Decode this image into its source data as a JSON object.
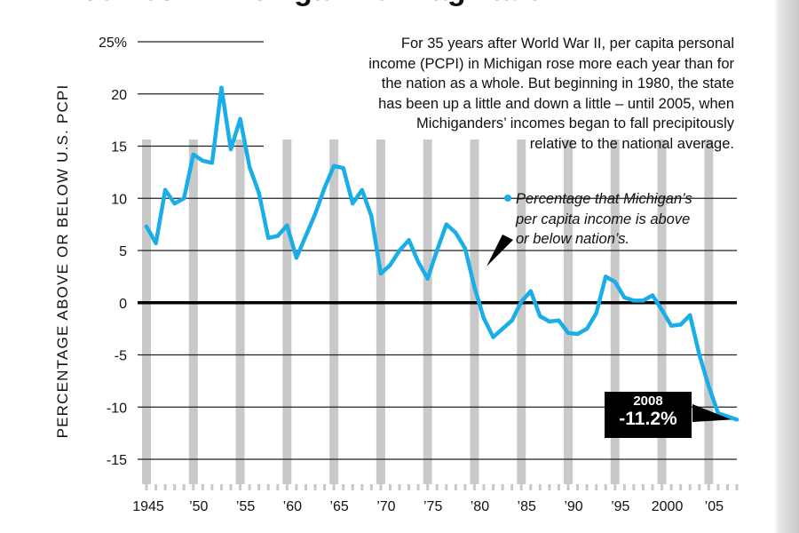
{
  "header": {
    "title": "Incomes in Michigan now lag nation"
  },
  "annotation": {
    "intro_lines": [
      "For 35 years after World War II, per capita personal",
      "income (PCPI) in Michigan rose more each year than for",
      "the nation as a whole. But beginning in 1980, the state",
      "has been up a little and down a little – until 2005, when",
      "Michiganders’ incomes began to fall precipitously",
      "relative to the national average."
    ]
  },
  "legend": {
    "lines": [
      "Percentage that Michigan’s",
      "per capita income is above",
      "or below nation’s."
    ]
  },
  "callout": {
    "year": "2008",
    "value": "-11.2%"
  },
  "colors": {
    "line": "#1aaee8",
    "bars": "#c9c9c9",
    "zero_line": "#000000",
    "grid": "#222222"
  },
  "chart_data": {
    "type": "line",
    "title": "Incomes in Michigan now lag nation",
    "ylabel": "PERCENTAGE ABOVE OR BELOW U.S. PCPI",
    "xlabel": "",
    "ylim": [
      -15,
      25
    ],
    "xlim": [
      1945,
      2008
    ],
    "y_ticks": [
      25,
      20,
      15,
      10,
      5,
      0,
      -5,
      -10,
      -15
    ],
    "y_tick_labels": [
      "25%",
      "20",
      "15",
      "10",
      "5",
      "0",
      "-5",
      "-10",
      "-15"
    ],
    "x_tick_years": [
      1945,
      1950,
      1955,
      1960,
      1965,
      1970,
      1975,
      1980,
      1985,
      1990,
      1995,
      2000,
      2005
    ],
    "x_tick_labels": [
      "1945",
      "’50",
      "’55",
      "’60",
      "’65",
      "’70",
      "’75",
      "’80",
      "’85",
      "’90",
      "’95",
      "2000",
      "’05"
    ],
    "series": [
      {
        "name": "Percentage that Michigan’s per capita income is above or below nation’s",
        "x": [
          1945,
          1946,
          1947,
          1948,
          1949,
          1950,
          1951,
          1952,
          1953,
          1954,
          1955,
          1956,
          1957,
          1958,
          1959,
          1960,
          1961,
          1962,
          1963,
          1964,
          1965,
          1966,
          1967,
          1968,
          1969,
          1970,
          1971,
          1972,
          1973,
          1974,
          1975,
          1976,
          1977,
          1978,
          1979,
          1980,
          1981,
          1982,
          1983,
          1984,
          1985,
          1986,
          1987,
          1988,
          1989,
          1990,
          1991,
          1992,
          1993,
          1994,
          1995,
          1996,
          1997,
          1998,
          1999,
          2000,
          2001,
          2002,
          2003,
          2004,
          2005,
          2006,
          2007,
          2008
        ],
        "values": [
          7.3,
          5.7,
          10.8,
          9.5,
          10.0,
          14.2,
          13.6,
          13.4,
          20.6,
          14.7,
          17.6,
          13.0,
          10.5,
          6.2,
          6.4,
          7.4,
          4.3,
          6.4,
          8.5,
          11.0,
          13.1,
          12.9,
          9.5,
          10.8,
          8.3,
          2.8,
          3.6,
          5.0,
          6.0,
          3.9,
          2.3,
          5.0,
          7.5,
          6.7,
          5.2,
          1.5,
          -1.5,
          -3.3,
          -2.5,
          -1.7,
          0.1,
          1.1,
          -1.3,
          -1.8,
          -1.7,
          -2.9,
          -3.0,
          -2.5,
          -1.0,
          2.5,
          2.0,
          0.5,
          0.2,
          0.2,
          0.7,
          -0.7,
          -2.2,
          -2.1,
          -1.2,
          -5.0,
          -8.0,
          -10.6,
          -10.9,
          -11.2
        ]
      }
    ],
    "highlight": {
      "x": 2008,
      "value": -11.2
    }
  }
}
